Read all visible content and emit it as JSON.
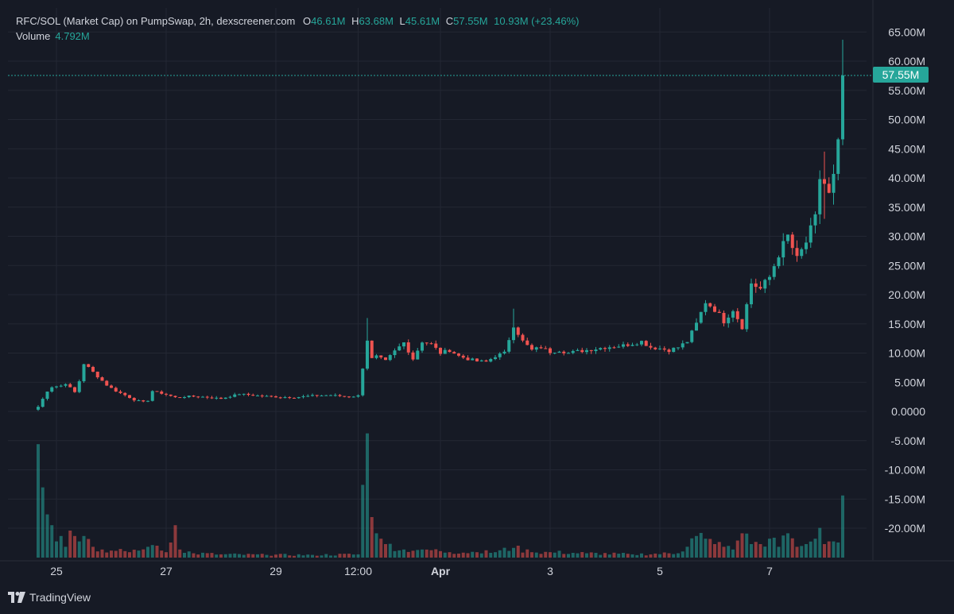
{
  "header": {
    "symbol": "RFC/SOL (Market Cap) on PumpSwap, 2h, dexscreener.com",
    "o_label": "O",
    "o_value": "46.61M",
    "h_label": "H",
    "h_value": "63.68M",
    "l_label": "L",
    "l_value": "45.61M",
    "c_label": "C",
    "c_value": "57.55M",
    "change": "10.93M (+23.46%)"
  },
  "volume_legend": {
    "label": "Volume",
    "value": "4.792M"
  },
  "price_badge": "57.55M",
  "branding": "TradingView",
  "colors": {
    "up": "#26a69a",
    "down": "#ef5350",
    "background": "#161a25",
    "grid": "#232733"
  },
  "chart_data": {
    "type": "candlestick",
    "interval": "2h",
    "y_unit": "market cap (USD)",
    "y_ticks": [
      "65.00M",
      "60.00M",
      "55.00M",
      "50.00M",
      "45.00M",
      "40.00M",
      "35.00M",
      "30.00M",
      "25.00M",
      "20.00M",
      "15.00M",
      "10.00M",
      "5.00M",
      "0.0000",
      "-5.00M",
      "-10.00M",
      "-15.00M",
      "-20.00M"
    ],
    "ylim": [
      -25,
      68
    ],
    "x_ticks": [
      {
        "label": "25",
        "t": 4
      },
      {
        "label": "27",
        "t": 28
      },
      {
        "label": "29",
        "t": 52
      },
      {
        "label": "12:00",
        "t": 70
      },
      {
        "label": "Apr",
        "t": 88,
        "bold": true
      },
      {
        "label": "3",
        "t": 112
      },
      {
        "label": "5",
        "t": 136
      },
      {
        "label": "7",
        "t": 160
      }
    ],
    "last_price": 57.55,
    "grid": true,
    "ohlc_anchor_closes": [
      [
        0,
        0.8
      ],
      [
        2,
        3.5
      ],
      [
        3,
        4.2
      ],
      [
        5,
        4.4
      ],
      [
        6,
        4.8
      ],
      [
        8,
        3.3
      ],
      [
        9,
        5.2
      ],
      [
        10,
        8.2
      ],
      [
        11,
        7.5
      ],
      [
        13,
        6.0
      ],
      [
        15,
        4.5
      ],
      [
        17,
        3.5
      ],
      [
        19,
        2.8
      ],
      [
        21,
        2.0
      ],
      [
        23,
        1.6
      ],
      [
        24,
        1.9
      ],
      [
        25,
        3.5
      ],
      [
        26,
        3.3
      ],
      [
        28,
        2.9
      ],
      [
        30,
        2.4
      ],
      [
        33,
        2.6
      ],
      [
        36,
        2.5
      ],
      [
        40,
        2.2
      ],
      [
        44,
        3.0
      ],
      [
        48,
        2.7
      ],
      [
        52,
        2.5
      ],
      [
        56,
        2.4
      ],
      [
        60,
        2.7
      ],
      [
        64,
        2.8
      ],
      [
        68,
        2.5
      ],
      [
        70,
        2.7
      ],
      [
        72,
        12.3
      ],
      [
        73,
        9.0
      ],
      [
        74,
        9.4
      ],
      [
        76,
        8.6
      ],
      [
        78,
        10.3
      ],
      [
        80,
        11.8
      ],
      [
        82,
        9.0
      ],
      [
        84,
        12.0
      ],
      [
        86,
        11.5
      ],
      [
        88,
        10.0
      ],
      [
        90,
        10.5
      ],
      [
        92,
        9.5
      ],
      [
        94,
        9.0
      ],
      [
        96,
        8.6
      ],
      [
        98,
        8.5
      ],
      [
        100,
        9.5
      ],
      [
        102,
        10.0
      ],
      [
        104,
        14.8
      ],
      [
        106,
        12.0
      ],
      [
        108,
        10.5
      ],
      [
        110,
        11.0
      ],
      [
        112,
        10.2
      ],
      [
        114,
        10.5
      ],
      [
        116,
        10.0
      ],
      [
        118,
        10.3
      ],
      [
        120,
        10.5
      ],
      [
        124,
        11.0
      ],
      [
        128,
        11.3
      ],
      [
        132,
        12.0
      ],
      [
        134,
        11.0
      ],
      [
        136,
        10.8
      ],
      [
        138,
        10.5
      ],
      [
        140,
        11.0
      ],
      [
        142,
        12.0
      ],
      [
        144,
        15.0
      ],
      [
        146,
        18.8
      ],
      [
        148,
        17.5
      ],
      [
        150,
        15.5
      ],
      [
        152,
        17.5
      ],
      [
        154,
        14.5
      ],
      [
        156,
        22.0
      ],
      [
        158,
        21.0
      ],
      [
        160,
        23.0
      ],
      [
        162,
        27.0
      ],
      [
        164,
        30.0
      ],
      [
        166,
        26.0
      ],
      [
        168,
        29.0
      ],
      [
        170,
        33.0
      ],
      [
        171,
        40.0
      ],
      [
        172,
        39.0
      ],
      [
        173,
        37.0
      ],
      [
        174,
        40.0
      ],
      [
        175,
        46.61
      ],
      [
        176,
        57.55
      ]
    ],
    "volume_anchor": [
      [
        0,
        21
      ],
      [
        1,
        13
      ],
      [
        2,
        8
      ],
      [
        3,
        6
      ],
      [
        4,
        3
      ],
      [
        5,
        4
      ],
      [
        6,
        2
      ],
      [
        7,
        5
      ],
      [
        8,
        4
      ],
      [
        9,
        3
      ],
      [
        10,
        4
      ],
      [
        12,
        2
      ],
      [
        14,
        1.5
      ],
      [
        16,
        1.3
      ],
      [
        18,
        1.6
      ],
      [
        19,
        1.2
      ],
      [
        20,
        1.0
      ],
      [
        22,
        1.3
      ],
      [
        24,
        2.0
      ],
      [
        26,
        2.2
      ],
      [
        27,
        1.3
      ],
      [
        28,
        1.0
      ],
      [
        30,
        6.0
      ],
      [
        31,
        1.5
      ],
      [
        34,
        0.8
      ],
      [
        40,
        0.6
      ],
      [
        50,
        0.5
      ],
      [
        60,
        0.5
      ],
      [
        70,
        0.6
      ],
      [
        72,
        23
      ],
      [
        73,
        7.5
      ],
      [
        74,
        4.5
      ],
      [
        75,
        3.5
      ],
      [
        76,
        2.5
      ],
      [
        80,
        1.5
      ],
      [
        84,
        1.5
      ],
      [
        88,
        1.2
      ],
      [
        90,
        1.0
      ],
      [
        96,
        1.0
      ],
      [
        100,
        1.0
      ],
      [
        104,
        1.8
      ],
      [
        108,
        1.0
      ],
      [
        112,
        1.0
      ],
      [
        120,
        0.8
      ],
      [
        130,
        0.6
      ],
      [
        140,
        0.8
      ],
      [
        144,
        4.0
      ],
      [
        146,
        3.5
      ],
      [
        148,
        2.5
      ],
      [
        150,
        2.0
      ],
      [
        152,
        1.5
      ],
      [
        154,
        4.5
      ],
      [
        156,
        2.5
      ],
      [
        158,
        2.5
      ],
      [
        160,
        3.5
      ],
      [
        162,
        2.0
      ],
      [
        164,
        4.5
      ],
      [
        166,
        2.0
      ],
      [
        168,
        2.5
      ],
      [
        170,
        3.5
      ],
      [
        171,
        5.5
      ],
      [
        172,
        2.5
      ],
      [
        173,
        3.0
      ],
      [
        174,
        3.0
      ],
      [
        175,
        2.8
      ],
      [
        176,
        11.5
      ]
    ]
  }
}
